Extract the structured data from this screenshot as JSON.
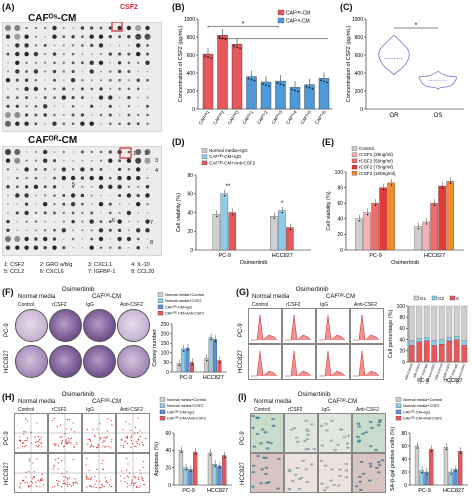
{
  "panels": {
    "A": {
      "label": "(A)",
      "top_title": "CAFᴼˢ-CM",
      "bottom_title": "CAFᴼᴿ-CM",
      "csf2_tag": "CSF2",
      "spot_labels": [
        "1",
        "2",
        "3",
        "4",
        "5",
        "6",
        "7",
        "8"
      ],
      "legend": [
        "1: CSF2",
        "2: GRO a/b/g",
        "3: CXCL1",
        "4: IL-10",
        "5: CCL2",
        "6: CXCL6",
        "7: IGFBP-1",
        "8: CCL20"
      ]
    },
    "B": {
      "label": "(B)"
    },
    "C": {
      "label": "(C)"
    },
    "D": {
      "label": "(D)"
    },
    "E": {
      "label": "(E)"
    },
    "F": {
      "label": "(F)",
      "drug": "Osimertinib",
      "grp1": "Normal media",
      "grp2": "CAFᴼᴿ-CM",
      "cols": [
        "Control",
        "rCSF2",
        "IgG",
        "Anti-CSF2"
      ],
      "rows": [
        "PC-9",
        "HCC827"
      ]
    },
    "G": {
      "label": "(G)",
      "drug": "Osimertinib",
      "grp1": "Normal media",
      "grp2": "CAFᴼᴿ-CM",
      "cols": [
        "Control",
        "rCSF2",
        "IgG",
        "Anti-CSF2"
      ],
      "rows": [
        "PC-9",
        "HCC827"
      ]
    },
    "H": {
      "label": "(H)",
      "drug": "Osimertinib",
      "grp1": "Normal media",
      "grp2": "CAFᴼᴿ-CM",
      "cols": [
        "Control",
        "rCSF2",
        "IgG",
        "Anti-CSF2"
      ],
      "rows": [
        "PC-9",
        "HCC827"
      ]
    },
    "I": {
      "label": "(I)",
      "drug": "Osimertinib",
      "grp1": "Normal media",
      "grp2": "CAFᴼᴿ-CM",
      "cols": [
        "Control",
        "rCSF2",
        "IgG",
        "Anti-CSF2"
      ],
      "rows": [
        "PC-9",
        "HCC827"
      ]
    }
  },
  "chart_data": [
    {
      "id": "B",
      "type": "bar",
      "ylabel": "Concentration of CSF2 (pg/mL)",
      "ylim": [
        0,
        1000
      ],
      "yticks": [
        0,
        200,
        400,
        600,
        800,
        1000
      ],
      "categories": [
        "CAFᴼᴿ1",
        "CAFᴼᴿ2",
        "CAFᴼᴿ3",
        "CAFᴼˢ1",
        "CAFᴼˢ2",
        "CAFᴼˢ3",
        "CAFᴼˢ4",
        "CAFᴼˢ5",
        "CAFᴼˢ6"
      ],
      "values": [
        610,
        820,
        720,
        360,
        300,
        310,
        240,
        270,
        340
      ],
      "groups": [
        "OR",
        "OR",
        "OR",
        "OS",
        "OS",
        "OS",
        "OS",
        "OS",
        "OS"
      ],
      "legend": [
        "CAFᴼᴿ-CM",
        "CAFᴼˢ-CM"
      ],
      "colors": {
        "OR": "#e8575a",
        "OS": "#4e9ad8"
      },
      "sig": "*"
    },
    {
      "id": "C",
      "type": "violin",
      "ylabel": "Concentration of CSF2 (pg/mL)",
      "ylim": [
        0,
        1000
      ],
      "yticks": [
        0,
        200,
        400,
        600,
        800,
        1000
      ],
      "categories": [
        "OR",
        "OS"
      ],
      "medians": [
        560,
        320
      ],
      "colors": [
        "#8a7ed1",
        "#8a7ed1"
      ],
      "sig": "*"
    },
    {
      "id": "D",
      "type": "bar",
      "ylabel": "Cell viability (%)",
      "ylim": [
        0,
        80
      ],
      "yticks": [
        0,
        20,
        40,
        60,
        80
      ],
      "categories": [
        "PC-9",
        "HCC827"
      ],
      "xlabel": "Osimertinib",
      "series": [
        {
          "name": "Normal media+IgG",
          "values": [
            38,
            36
          ],
          "color": "#cfcfcf"
        },
        {
          "name": "CAFᴼᴿ-CM+IgG",
          "values": [
            60,
            42
          ],
          "color": "#8ecbe8"
        },
        {
          "name": "CAFᴼᴿ-CM+Anti-CSF2",
          "values": [
            40,
            24
          ],
          "color": "#e8575a"
        }
      ],
      "sig": [
        "**",
        "*",
        "*"
      ]
    },
    {
      "id": "E",
      "type": "bar",
      "ylabel": "Cell viability (%)",
      "ylim": [
        0,
        100
      ],
      "yticks": [
        0,
        20,
        40,
        60,
        80,
        100
      ],
      "categories": [
        "PC-9",
        "HCC827"
      ],
      "xlabel": "Osimertinib",
      "series": [
        {
          "name": "Control",
          "values": [
            40,
            30
          ],
          "color": "#cfcfcf"
        },
        {
          "name": "rCSF2 (25ng/ml)",
          "values": [
            48,
            36
          ],
          "color": "#f4b2b2"
        },
        {
          "name": "rCSF2 (50ng/ml)",
          "values": [
            60,
            60
          ],
          "color": "#ef6c6c"
        },
        {
          "name": "rCSF2 (75ng/ml)",
          "values": [
            80,
            82
          ],
          "color": "#e53935"
        },
        {
          "name": "rCSF2 (100ng/ml)",
          "values": [
            86,
            88
          ],
          "color": "#f28b30"
        }
      ]
    },
    {
      "id": "F",
      "type": "bar",
      "ylabel": "Colony number",
      "ylim": [
        0,
        250
      ],
      "yticks": [
        0,
        50,
        100,
        150,
        200,
        250
      ],
      "categories": [
        "PC-9",
        "HCC827"
      ],
      "series": [
        {
          "name": "Normal media+Control",
          "values": [
            45,
            70
          ],
          "color": "#cfcfcf"
        },
        {
          "name": "Normal media+CSF2",
          "values": [
            120,
            180
          ],
          "color": "#8ecbe8"
        },
        {
          "name": "CAFᴼᴿ-CM+IgG",
          "values": [
            125,
            170
          ],
          "color": "#5b8fd6"
        },
        {
          "name": "CAFᴼᴿ-CM+Anti-CSF2",
          "values": [
            50,
            60
          ],
          "color": "#e8575a"
        }
      ],
      "sig": [
        "****",
        "****",
        "***",
        "****"
      ]
    },
    {
      "id": "G",
      "type": "stacked-bar",
      "ylabel": "Cell percentage (%)",
      "ylim": [
        0,
        100
      ],
      "yticks": [
        0,
        20,
        40,
        60,
        80,
        100
      ],
      "categories": [
        "NM+Control",
        "NM+CSF2",
        "CAFᴼᴿ-CM+IgG",
        "CAFᴼᴿ-CM+Anti-CSF2",
        "NM+Control",
        "NM+CSF2",
        "CAFᴼᴿ-CM+IgG",
        "CAFᴼᴿ-CM+Anti-CSF2"
      ],
      "groups": [
        "PC-9",
        "HCC827"
      ],
      "legend": [
        "G1",
        "G2",
        "S"
      ],
      "series": [
        {
          "name": "S",
          "values": [
            30,
            36,
            38,
            30,
            32,
            38,
            40,
            30
          ],
          "color": "#e8575a"
        },
        {
          "name": "G2",
          "values": [
            8,
            6,
            6,
            9,
            8,
            6,
            6,
            8
          ],
          "color": "#8ecbe8"
        },
        {
          "name": "G1",
          "values": [
            62,
            58,
            56,
            61,
            60,
            56,
            54,
            62
          ],
          "color": "#cfcfcf"
        }
      ]
    },
    {
      "id": "H",
      "type": "bar",
      "ylabel": "Apoptosis (%)",
      "ylim": [
        0,
        60
      ],
      "yticks": [
        0,
        20,
        40,
        60
      ],
      "categories": [
        "PC-9",
        "HCC827"
      ],
      "series": [
        {
          "name": "Normal media+Control",
          "values": [
            40,
            37
          ],
          "color": "#cfcfcf"
        },
        {
          "name": "Normal media+CSF2",
          "values": [
            20,
            24
          ],
          "color": "#8ecbe8"
        },
        {
          "name": "CAFᴼᴿ-CM+IgG",
          "values": [
            18,
            22
          ],
          "color": "#5b8fd6"
        },
        {
          "name": "CAFᴼᴿ-CM+Anti-CSF2",
          "values": [
            38,
            34
          ],
          "color": "#e8575a"
        }
      ],
      "sig": [
        "****",
        "****",
        "***",
        "***"
      ]
    },
    {
      "id": "I",
      "type": "bar",
      "ylabel": "SA-β-gal positive cells (%)",
      "ylim": [
        0,
        80
      ],
      "yticks": [
        0,
        20,
        40,
        60,
        80
      ],
      "categories": [
        "PC-9",
        "HCC827"
      ],
      "series": [
        {
          "name": "Normal media+Control",
          "values": [
            60,
            58
          ],
          "color": "#cfcfcf"
        },
        {
          "name": "Normal media+CSF2",
          "values": [
            22,
            20
          ],
          "color": "#8ecbe8"
        },
        {
          "name": "CAFᴼᴿ-CM+IgG",
          "values": [
            20,
            24
          ],
          "color": "#5b8fd6"
        },
        {
          "name": "CAFᴼᴿ-CM+Anti-CSF2",
          "values": [
            55,
            52
          ],
          "color": "#e8575a"
        }
      ],
      "sig": [
        "****",
        "****",
        "****",
        "****"
      ]
    }
  ]
}
